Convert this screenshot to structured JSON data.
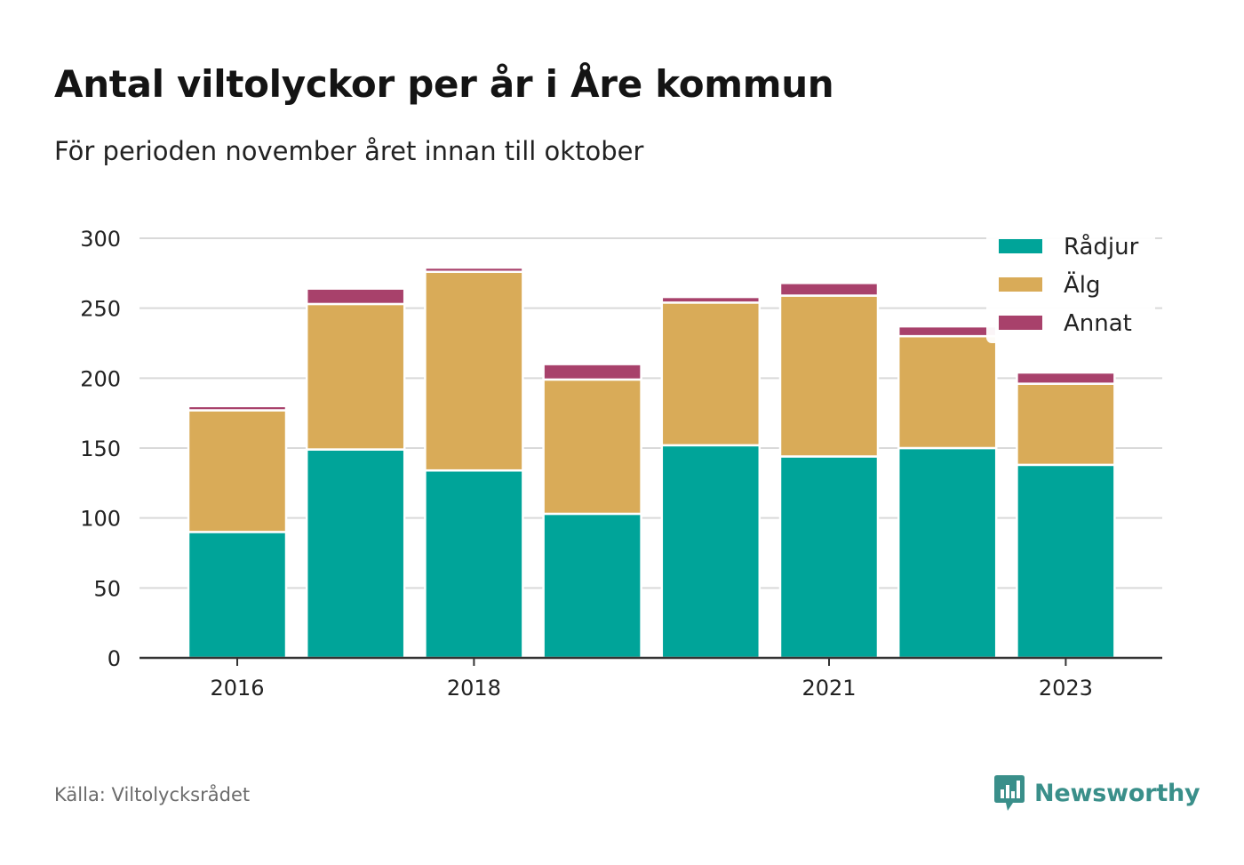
{
  "title": "Antal viltolyckor per år i Åre kommun",
  "subtitle": "För perioden november året innan till oktober",
  "source": "Källa: Viltolycksrådet",
  "brand": "Newsworthy",
  "chart_data": {
    "type": "bar",
    "stacked": true,
    "x": [
      2016,
      2017,
      2018,
      2019,
      2020,
      2021,
      2022,
      2023
    ],
    "x_tick_labels": [
      "2016",
      "2018",
      "2021",
      "2023"
    ],
    "series": [
      {
        "name": "Rådjur",
        "color": "#00a499",
        "values": [
          90,
          149,
          134,
          103,
          152,
          144,
          150,
          138
        ]
      },
      {
        "name": "Älg",
        "color": "#d9ab58",
        "values": [
          87,
          104,
          142,
          96,
          102,
          115,
          80,
          58
        ]
      },
      {
        "name": "Annat",
        "color": "#a8416b",
        "values": [
          3,
          11,
          3,
          11,
          4,
          9,
          7,
          8
        ]
      }
    ],
    "ylim": [
      0,
      300
    ],
    "y_ticks": [
      0,
      50,
      100,
      150,
      200,
      250,
      300
    ],
    "grid": true,
    "legend": "top-right"
  }
}
